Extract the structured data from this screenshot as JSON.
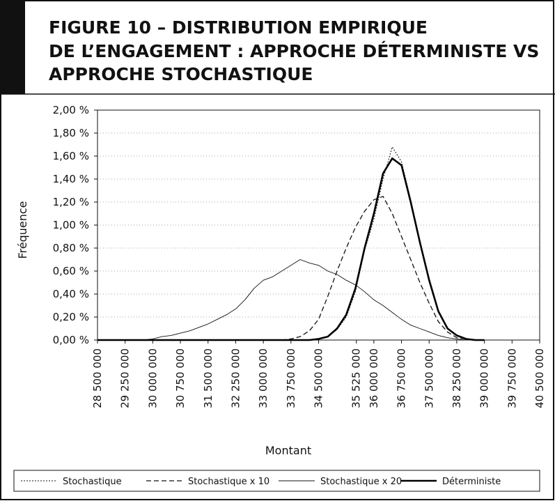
{
  "chart_data": {
    "type": "line",
    "title": [
      "FIGURE 10 – DISTRIBUTION EMPIRIQUE",
      "DE L’ENGAGEMENT : APPROCHE DÉTERMINISTE VS",
      "APPROCHE STOCHASTIQUE"
    ],
    "x_label": "Montant",
    "y_label": "Fréquence",
    "x": [
      28500000,
      28750000,
      29000000,
      29250000,
      29500000,
      29750000,
      30000000,
      30250000,
      30500000,
      30750000,
      31000000,
      31250000,
      31500000,
      31750000,
      32000000,
      32250000,
      32500000,
      32750000,
      33000000,
      33250000,
      33500000,
      33750000,
      34000000,
      34250000,
      34500000,
      34750000,
      35000000,
      35250000,
      35500000,
      35750000,
      36000000,
      36250000,
      36500000,
      36750000,
      37000000,
      37250000,
      37500000,
      37750000,
      38000000,
      38250000,
      38500000,
      38750000,
      39000000
    ],
    "series": [
      {
        "name": "Stochastique",
        "color": "#111",
        "style": "dotted",
        "values": [
          0,
          0,
          0,
          0,
          0,
          0,
          0,
          0,
          0,
          0,
          0,
          0,
          0,
          0,
          0,
          0,
          0,
          0,
          0,
          0,
          0,
          0,
          0,
          0,
          0.01,
          0.03,
          0.09,
          0.2,
          0.42,
          0.78,
          1.05,
          1.4,
          1.68,
          1.55,
          1.22,
          0.86,
          0.54,
          0.26,
          0.1,
          0.04,
          0.01,
          0,
          0
        ]
      },
      {
        "name": "Stochastique x 10",
        "color": "#111",
        "style": "dashed",
        "values": [
          0,
          0,
          0,
          0,
          0,
          0,
          0,
          0,
          0,
          0,
          0,
          0,
          0,
          0,
          0,
          0,
          0,
          0,
          0,
          0,
          0,
          0.01,
          0.03,
          0.08,
          0.18,
          0.38,
          0.6,
          0.8,
          0.98,
          1.12,
          1.22,
          1.25,
          1.1,
          0.9,
          0.7,
          0.5,
          0.32,
          0.16,
          0.07,
          0.02,
          0.01,
          0,
          0
        ]
      },
      {
        "name": "Stochastique x 20",
        "color": "#111",
        "style": "solid",
        "values": [
          0,
          0,
          0,
          0,
          0,
          0,
          0.01,
          0.03,
          0.04,
          0.06,
          0.08,
          0.11,
          0.14,
          0.18,
          0.22,
          0.27,
          0.35,
          0.45,
          0.52,
          0.55,
          0.6,
          0.65,
          0.7,
          0.67,
          0.65,
          0.6,
          0.57,
          0.52,
          0.48,
          0.42,
          0.35,
          0.3,
          0.24,
          0.18,
          0.13,
          0.1,
          0.07,
          0.04,
          0.02,
          0.01,
          0,
          0,
          0
        ]
      },
      {
        "name": "Déterministe",
        "color": "#000",
        "style": "bold",
        "values": [
          0,
          0,
          0,
          0,
          0,
          0,
          0,
          0,
          0,
          0,
          0,
          0,
          0,
          0,
          0,
          0,
          0,
          0,
          0,
          0,
          0,
          0,
          0,
          0,
          0.01,
          0.03,
          0.1,
          0.22,
          0.45,
          0.8,
          1.1,
          1.45,
          1.58,
          1.52,
          1.2,
          0.85,
          0.52,
          0.25,
          0.1,
          0.04,
          0.01,
          0,
          0
        ]
      }
    ],
    "xlim": [
      28500000,
      40500000
    ],
    "xticks": [
      {
        "value": 28500000,
        "label": "28 500 000"
      },
      {
        "value": 29250000,
        "label": "29 250 000"
      },
      {
        "value": 30000000,
        "label": "30 000 000"
      },
      {
        "value": 30750000,
        "label": "30 750 000"
      },
      {
        "value": 31500000,
        "label": "31 500 000"
      },
      {
        "value": 32250000,
        "label": "32 250 000"
      },
      {
        "value": 33000000,
        "label": "33 000 000"
      },
      {
        "value": 33750000,
        "label": "33 750 000"
      },
      {
        "value": 34500000,
        "label": "34 500 000"
      },
      {
        "value": 35525000,
        "label": "35 525 000"
      },
      {
        "value": 36000000,
        "label": "36 000 000"
      },
      {
        "value": 36750000,
        "label": "36 750 000"
      },
      {
        "value": 37500000,
        "label": "37 500 000"
      },
      {
        "value": 38250000,
        "label": "38 250 000"
      },
      {
        "value": 39000000,
        "label": "39 000 000"
      },
      {
        "value": 39750000,
        "label": "39 750 000"
      },
      {
        "value": 40500000,
        "label": "40 500 000"
      }
    ],
    "ylim": [
      0,
      2
    ],
    "yticks": [
      {
        "value": 0,
        "label": "0,00 %"
      },
      {
        "value": 0.2,
        "label": "0,20 %"
      },
      {
        "value": 0.4,
        "label": "0,40 %"
      },
      {
        "value": 0.6,
        "label": "0,60 %"
      },
      {
        "value": 0.8,
        "label": "0,80 %"
      },
      {
        "value": 1,
        "label": "1,00 %"
      },
      {
        "value": 1.2,
        "label": "1,20 %"
      },
      {
        "value": 1.4,
        "label": "1,40 %"
      },
      {
        "value": 1.6,
        "label": "1,60 %"
      },
      {
        "value": 1.8,
        "label": "1,80 %"
      },
      {
        "value": 2,
        "label": "2,00 %"
      }
    ],
    "grid": true,
    "legend": "bottom"
  }
}
